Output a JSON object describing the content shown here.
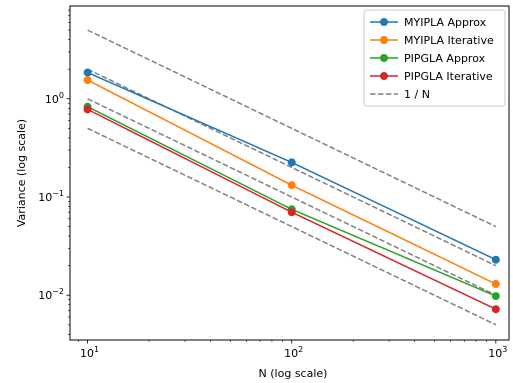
{
  "chart_data": {
    "type": "line",
    "title": "",
    "xlabel": "N (log scale)",
    "ylabel": "Variance (log scale)",
    "xscale": "log",
    "yscale": "log",
    "xlim": [
      8.2,
      1160
    ],
    "ylim": [
      0.0035,
      8.8
    ],
    "grid": false,
    "legend_position": "top-right",
    "x": [
      10,
      100,
      1000
    ],
    "x_ticks": [
      {
        "value": 10,
        "base": "10",
        "exp": "1"
      },
      {
        "value": 100,
        "base": "10",
        "exp": "2"
      },
      {
        "value": 1000,
        "base": "10",
        "exp": "3"
      }
    ],
    "y_ticks": [
      {
        "value": 0.01,
        "base": "10",
        "exp": "−2"
      },
      {
        "value": 0.1,
        "base": "10",
        "exp": "−1"
      },
      {
        "value": 1,
        "base": "10",
        "exp": "0"
      }
    ],
    "series": [
      {
        "name": "MYIPLA Approx",
        "color": "#1f77b4",
        "values": [
          1.85,
          0.225,
          0.023
        ]
      },
      {
        "name": "MYIPLA Iterative",
        "color": "#ff7f0e",
        "values": [
          1.55,
          0.132,
          0.013
        ]
      },
      {
        "name": "PIPGLA Approx",
        "color": "#2ca02c",
        "values": [
          0.83,
          0.075,
          0.0098
        ]
      },
      {
        "name": "PIPGLA Iterative",
        "color": "#d62728",
        "values": [
          0.78,
          0.07,
          0.0072
        ]
      }
    ],
    "reference_lines": {
      "name": "1 / N",
      "color": "#808080",
      "style": "dashed",
      "lines": [
        {
          "values": [
            5.0,
            0.5,
            0.05
          ]
        },
        {
          "values": [
            2.0,
            0.2,
            0.02
          ]
        },
        {
          "values": [
            1.0,
            0.1,
            0.01
          ]
        },
        {
          "values": [
            0.5,
            0.05,
            0.005
          ]
        }
      ]
    }
  }
}
